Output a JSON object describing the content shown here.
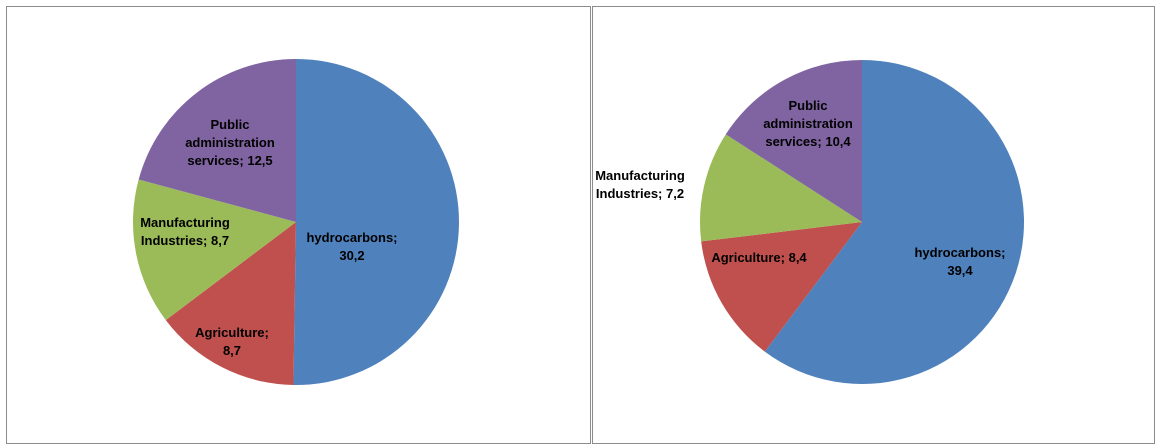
{
  "chart_data": [
    {
      "type": "pie",
      "slices": [
        {
          "name": "hydrocarbons",
          "value": 30.2,
          "label_lines": [
            "hydrocarbons;",
            "30,2"
          ],
          "color": "#4F81BD"
        },
        {
          "name": "Agriculture",
          "value": 8.7,
          "label_lines": [
            "Agriculture;",
            "8,7"
          ],
          "color": "#C0504D"
        },
        {
          "name": "Manufacturing Industries",
          "value": 8.7,
          "label_lines": [
            "Manufacturing",
            "Industries; 8,7"
          ],
          "color": "#9BBB59"
        },
        {
          "name": "Public administration services",
          "value": 12.5,
          "label_lines": [
            "Public",
            "administration",
            "services; 12,5"
          ],
          "color": "#8064A2"
        }
      ],
      "start_angle": "12 o'clock",
      "direction": "clockwise",
      "data_labels": "inside"
    },
    {
      "type": "pie",
      "slices": [
        {
          "name": "hydrocarbons",
          "value": 39.4,
          "label_lines": [
            "hydrocarbons;",
            "39,4"
          ],
          "color": "#4F81BD"
        },
        {
          "name": "Agriculture",
          "value": 8.4,
          "label_lines": [
            "Agriculture; 8,4"
          ],
          "color": "#C0504D"
        },
        {
          "name": "Manufacturing Industries",
          "value": 7.2,
          "label_lines": [
            "Manufacturing",
            "Industries; 7,2"
          ],
          "color": "#9BBB59"
        },
        {
          "name": "Public administration services",
          "value": 10.4,
          "label_lines": [
            "Public",
            "administration",
            "services; 10,4"
          ],
          "color": "#8064A2"
        }
      ],
      "start_angle": "12 o'clock",
      "direction": "clockwise",
      "data_labels": "inside, manufacturing label outside left"
    }
  ]
}
